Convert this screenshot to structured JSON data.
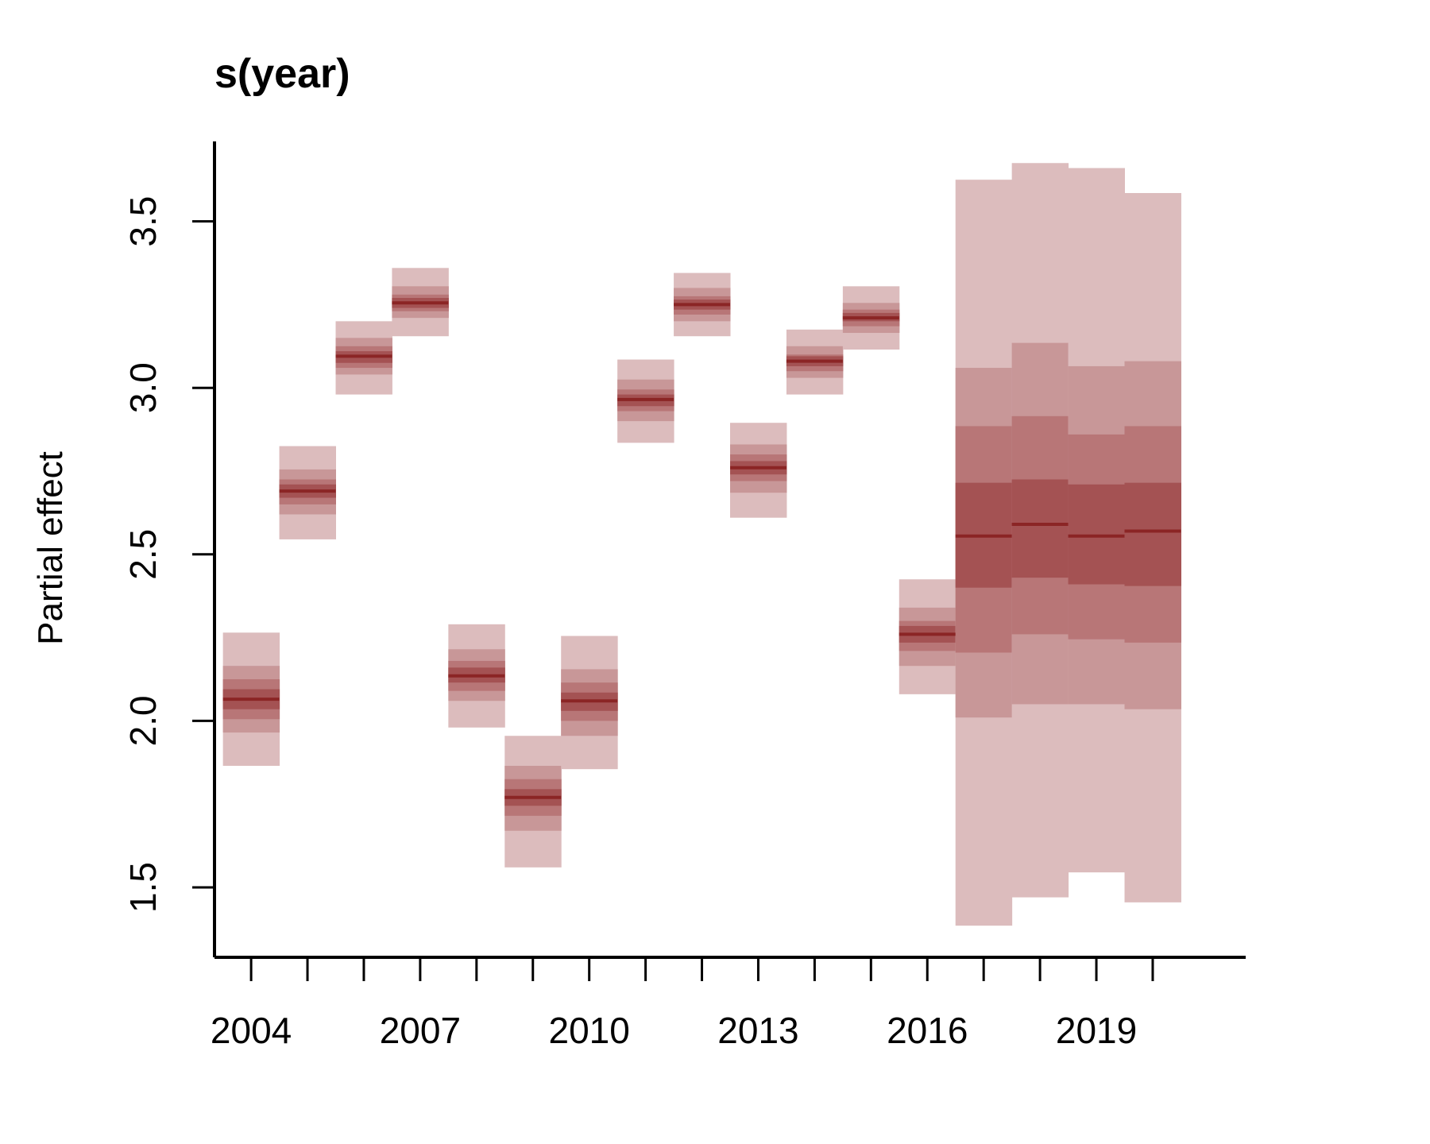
{
  "chart_data": {
    "type": "interval",
    "title": "s(year)",
    "xlabel": "",
    "ylabel": "Partial effect",
    "xlim": [
      2003.35,
      2021.65
    ],
    "ylim": [
      1.29,
      3.74
    ],
    "x_ticks": [
      2004,
      2005,
      2006,
      2007,
      2008,
      2009,
      2010,
      2011,
      2012,
      2013,
      2014,
      2015,
      2016,
      2017,
      2018,
      2019,
      2020
    ],
    "x_tick_labels": [
      "2004",
      "",
      "",
      "2007",
      "",
      "",
      "2010",
      "",
      "",
      "2013",
      "",
      "",
      "2016",
      "",
      "",
      "2019",
      ""
    ],
    "y_ticks": [
      1.5,
      2.0,
      2.5,
      3.0,
      3.5
    ],
    "y_tick_labels": [
      "1.5",
      "2.0",
      "2.5",
      "3.0",
      "3.5"
    ],
    "grid": false,
    "colors": {
      "line": "#8b2525",
      "band_outer": "#dcbcbd",
      "band_2": "#c89798",
      "band_3": "#b87677",
      "band_inner": "#a45253",
      "axis": "#000000"
    },
    "series": [
      {
        "x": 2004,
        "mean": 2.065,
        "bands": [
          [
            1.865,
            2.265
          ],
          [
            1.965,
            2.165
          ],
          [
            2.005,
            2.125
          ],
          [
            2.035,
            2.095
          ]
        ]
      },
      {
        "x": 2005,
        "mean": 2.69,
        "bands": [
          [
            2.545,
            2.825
          ],
          [
            2.62,
            2.755
          ],
          [
            2.65,
            2.725
          ],
          [
            2.67,
            2.71
          ]
        ]
      },
      {
        "x": 2006,
        "mean": 3.095,
        "bands": [
          [
            2.98,
            3.2
          ],
          [
            3.04,
            3.15
          ],
          [
            3.06,
            3.125
          ],
          [
            3.075,
            3.11
          ]
        ]
      },
      {
        "x": 2007,
        "mean": 3.255,
        "bands": [
          [
            3.155,
            3.36
          ],
          [
            3.21,
            3.305
          ],
          [
            3.23,
            3.28
          ],
          [
            3.24,
            3.27
          ]
        ]
      },
      {
        "x": 2008,
        "mean": 2.135,
        "bands": [
          [
            1.98,
            2.29
          ],
          [
            2.06,
            2.215
          ],
          [
            2.09,
            2.18
          ],
          [
            2.115,
            2.16
          ]
        ]
      },
      {
        "x": 2009,
        "mean": 1.77,
        "bands": [
          [
            1.56,
            1.955
          ],
          [
            1.67,
            1.865
          ],
          [
            1.715,
            1.825
          ],
          [
            1.745,
            1.795
          ]
        ]
      },
      {
        "x": 2010,
        "mean": 2.06,
        "bands": [
          [
            1.855,
            2.255
          ],
          [
            1.955,
            2.155
          ],
          [
            2.0,
            2.115
          ],
          [
            2.03,
            2.085
          ]
        ]
      },
      {
        "x": 2011,
        "mean": 2.965,
        "bands": [
          [
            2.835,
            3.085
          ],
          [
            2.9,
            3.025
          ],
          [
            2.93,
            2.995
          ],
          [
            2.945,
            2.98
          ]
        ]
      },
      {
        "x": 2012,
        "mean": 3.25,
        "bands": [
          [
            3.155,
            3.345
          ],
          [
            3.2,
            3.3
          ],
          [
            3.22,
            3.275
          ],
          [
            3.235,
            3.265
          ]
        ]
      },
      {
        "x": 2013,
        "mean": 2.76,
        "bands": [
          [
            2.61,
            2.895
          ],
          [
            2.685,
            2.83
          ],
          [
            2.72,
            2.8
          ],
          [
            2.74,
            2.78
          ]
        ]
      },
      {
        "x": 2014,
        "mean": 3.08,
        "bands": [
          [
            2.98,
            3.175
          ],
          [
            3.03,
            3.125
          ],
          [
            3.05,
            3.1
          ],
          [
            3.065,
            3.095
          ]
        ]
      },
      {
        "x": 2015,
        "mean": 3.21,
        "bands": [
          [
            3.115,
            3.305
          ],
          [
            3.165,
            3.255
          ],
          [
            3.185,
            3.235
          ],
          [
            3.2,
            3.225
          ]
        ]
      },
      {
        "x": 2016,
        "mean": 2.26,
        "bands": [
          [
            2.08,
            2.425
          ],
          [
            2.165,
            2.34
          ],
          [
            2.21,
            2.3
          ],
          [
            2.235,
            2.285
          ]
        ]
      },
      {
        "x": 2017,
        "mean": 2.555,
        "bands": [
          [
            1.385,
            3.625
          ],
          [
            2.01,
            3.06
          ],
          [
            2.205,
            2.885
          ],
          [
            2.4,
            2.715
          ]
        ]
      },
      {
        "x": 2018,
        "mean": 2.59,
        "bands": [
          [
            1.47,
            3.675
          ],
          [
            2.05,
            3.135
          ],
          [
            2.26,
            2.915
          ],
          [
            2.43,
            2.725
          ]
        ]
      },
      {
        "x": 2019,
        "mean": 2.555,
        "bands": [
          [
            1.545,
            3.66
          ],
          [
            2.05,
            3.065
          ],
          [
            2.245,
            2.86
          ],
          [
            2.41,
            2.71
          ]
        ]
      },
      {
        "x": 2020,
        "mean": 2.57,
        "bands": [
          [
            1.455,
            3.585
          ],
          [
            2.035,
            3.08
          ],
          [
            2.235,
            2.885
          ],
          [
            2.405,
            2.715
          ]
        ]
      }
    ]
  }
}
